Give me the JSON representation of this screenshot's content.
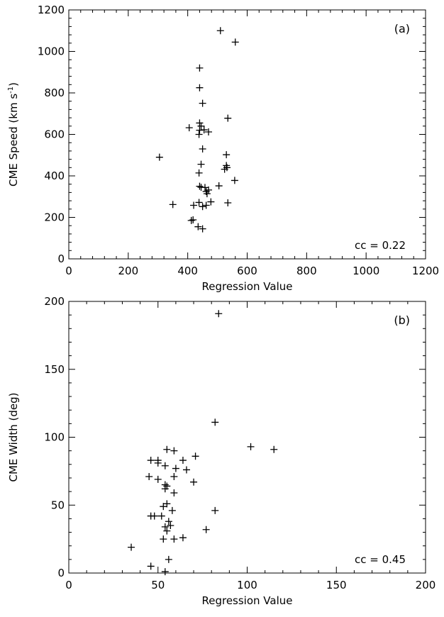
{
  "chart_data": [
    {
      "type": "scatter",
      "panel_label": "(a)",
      "xlabel": "Regression Value",
      "ylabel": "CME Speed (km s",
      "ylabel_sup": "-1",
      "ylabel_close": ")",
      "annotation": "cc = 0.22",
      "xlim": [
        0,
        1200
      ],
      "ylim": [
        0,
        1200
      ],
      "xticks": [
        "0",
        "200",
        "400",
        "600",
        "800",
        "1000",
        "1200"
      ],
      "yticks": [
        "0",
        "200",
        "400",
        "600",
        "800",
        "1000",
        "1200"
      ],
      "grid": false,
      "points": [
        {
          "x": 510,
          "y": 1100
        },
        {
          "x": 560,
          "y": 1045
        },
        {
          "x": 440,
          "y": 920
        },
        {
          "x": 440,
          "y": 825
        },
        {
          "x": 450,
          "y": 750
        },
        {
          "x": 535,
          "y": 678
        },
        {
          "x": 440,
          "y": 655
        },
        {
          "x": 445,
          "y": 640
        },
        {
          "x": 405,
          "y": 632
        },
        {
          "x": 440,
          "y": 620
        },
        {
          "x": 455,
          "y": 622
        },
        {
          "x": 470,
          "y": 612
        },
        {
          "x": 438,
          "y": 600
        },
        {
          "x": 450,
          "y": 530
        },
        {
          "x": 530,
          "y": 502
        },
        {
          "x": 305,
          "y": 490
        },
        {
          "x": 445,
          "y": 456
        },
        {
          "x": 530,
          "y": 450
        },
        {
          "x": 532,
          "y": 440
        },
        {
          "x": 524,
          "y": 432
        },
        {
          "x": 438,
          "y": 414
        },
        {
          "x": 558,
          "y": 378
        },
        {
          "x": 505,
          "y": 352
        },
        {
          "x": 440,
          "y": 350
        },
        {
          "x": 445,
          "y": 345
        },
        {
          "x": 458,
          "y": 344
        },
        {
          "x": 470,
          "y": 332
        },
        {
          "x": 462,
          "y": 325
        },
        {
          "x": 465,
          "y": 314
        },
        {
          "x": 478,
          "y": 275
        },
        {
          "x": 438,
          "y": 272
        },
        {
          "x": 535,
          "y": 270
        },
        {
          "x": 350,
          "y": 262
        },
        {
          "x": 420,
          "y": 258
        },
        {
          "x": 462,
          "y": 258
        },
        {
          "x": 450,
          "y": 252
        },
        {
          "x": 418,
          "y": 188
        },
        {
          "x": 412,
          "y": 185
        },
        {
          "x": 435,
          "y": 155
        },
        {
          "x": 450,
          "y": 145
        }
      ]
    },
    {
      "type": "scatter",
      "panel_label": "(b)",
      "xlabel": "Regression Value",
      "ylabel": "CME Width (deg)",
      "ylabel_sup": "",
      "ylabel_close": "",
      "annotation": "cc = 0.45",
      "xlim": [
        0,
        200
      ],
      "ylim": [
        0,
        200
      ],
      "xticks": [
        "0",
        "50",
        "100",
        "150",
        "200"
      ],
      "yticks": [
        "0",
        "50",
        "100",
        "150",
        "200"
      ],
      "grid": false,
      "points": [
        {
          "x": 84,
          "y": 191
        },
        {
          "x": 82,
          "y": 111
        },
        {
          "x": 102,
          "y": 93
        },
        {
          "x": 115,
          "y": 91
        },
        {
          "x": 55,
          "y": 91
        },
        {
          "x": 59,
          "y": 90
        },
        {
          "x": 71,
          "y": 86
        },
        {
          "x": 46,
          "y": 83
        },
        {
          "x": 50,
          "y": 83
        },
        {
          "x": 64,
          "y": 83
        },
        {
          "x": 50,
          "y": 81
        },
        {
          "x": 54,
          "y": 79
        },
        {
          "x": 60,
          "y": 77
        },
        {
          "x": 66,
          "y": 76
        },
        {
          "x": 45,
          "y": 71
        },
        {
          "x": 59,
          "y": 71
        },
        {
          "x": 50,
          "y": 69
        },
        {
          "x": 70,
          "y": 67
        },
        {
          "x": 54,
          "y": 65
        },
        {
          "x": 55,
          "y": 64
        },
        {
          "x": 54,
          "y": 62
        },
        {
          "x": 59,
          "y": 59
        },
        {
          "x": 55,
          "y": 51
        },
        {
          "x": 53,
          "y": 49
        },
        {
          "x": 58,
          "y": 46
        },
        {
          "x": 82,
          "y": 46
        },
        {
          "x": 46,
          "y": 42
        },
        {
          "x": 48,
          "y": 42
        },
        {
          "x": 52,
          "y": 42
        },
        {
          "x": 56,
          "y": 38
        },
        {
          "x": 57,
          "y": 35
        },
        {
          "x": 54,
          "y": 34
        },
        {
          "x": 55,
          "y": 31
        },
        {
          "x": 77,
          "y": 32
        },
        {
          "x": 53,
          "y": 25
        },
        {
          "x": 59,
          "y": 25
        },
        {
          "x": 64,
          "y": 26
        },
        {
          "x": 35,
          "y": 19
        },
        {
          "x": 56,
          "y": 10
        },
        {
          "x": 46,
          "y": 5
        },
        {
          "x": 54,
          "y": 1
        }
      ]
    }
  ]
}
